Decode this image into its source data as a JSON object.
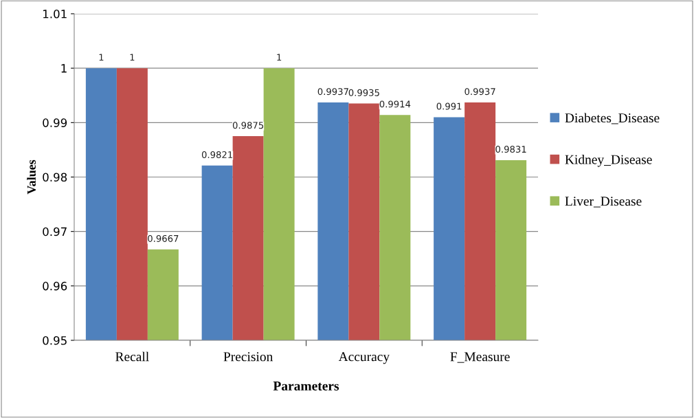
{
  "chart_data": {
    "type": "bar",
    "xlabel": "Parameters",
    "ylabel": "Values",
    "categories": [
      "Recall",
      "Precision",
      "Accuracy",
      "F_Measure"
    ],
    "series": [
      {
        "name": "Diabetes_Disease",
        "color": "#4f81bd",
        "values": [
          1,
          0.9821,
          0.9937,
          0.991
        ]
      },
      {
        "name": "Kidney_Disease",
        "color": "#c0504d",
        "values": [
          1,
          0.9875,
          0.9935,
          0.9937
        ]
      },
      {
        "name": "Liver_Disease",
        "color": "#9bbb59",
        "values": [
          0.9667,
          1,
          0.9914,
          0.9831
        ]
      }
    ],
    "ylim": [
      0.95,
      1.01
    ],
    "yticks": [
      {
        "value": 0.95,
        "label": "0.95"
      },
      {
        "value": 0.96,
        "label": "0.96"
      },
      {
        "value": 0.97,
        "label": "0.97"
      },
      {
        "value": 0.98,
        "label": "0.98"
      },
      {
        "value": 0.99,
        "label": "0.99"
      },
      1,
      {
        "value": 1.01,
        "label": "1.01"
      }
    ],
    "grid": "y",
    "legend": "right",
    "data_labels": true
  }
}
